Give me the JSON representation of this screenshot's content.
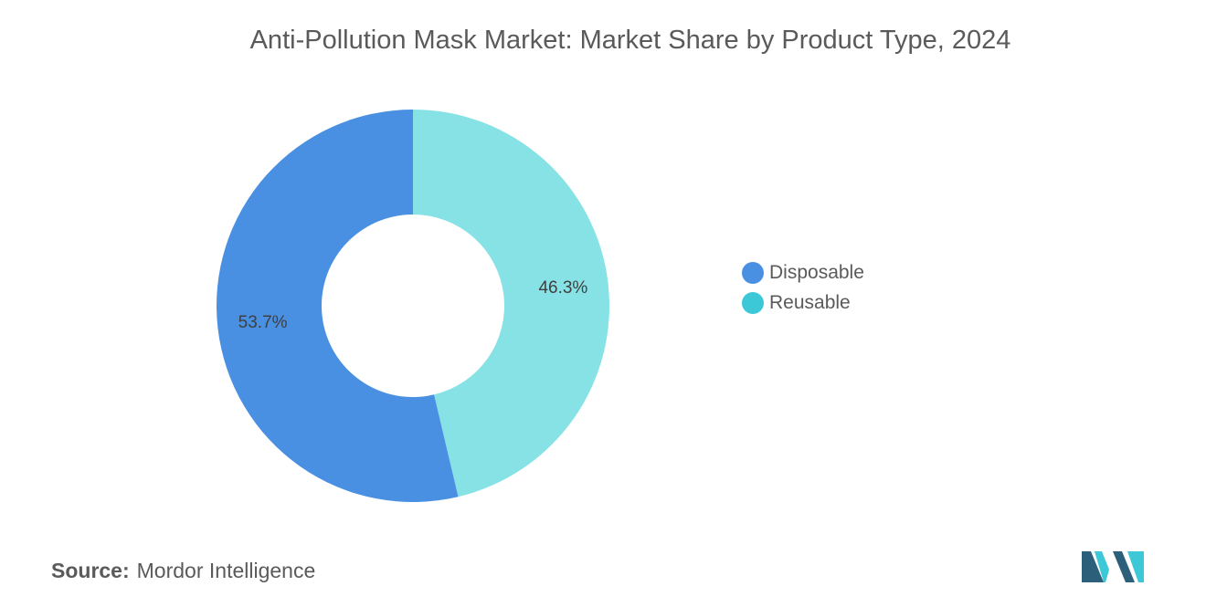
{
  "title": "Anti-Pollution Mask Market: Market Share by Product Type, 2024",
  "chart_data": {
    "type": "pie",
    "variant": "donut",
    "title": "Anti-Pollution Mask Market: Market Share by Product Type, 2024",
    "categories": [
      "Disposable",
      "Reusable"
    ],
    "values": [
      53.7,
      46.3
    ],
    "unit": "%",
    "data_labels": [
      "53.7%",
      "46.3%"
    ],
    "colors": [
      "#4a90e2",
      "#87e2e6"
    ],
    "legend_colors": [
      "#4a90e2",
      "#3cc8d6"
    ],
    "legend_position": "right"
  },
  "legend": {
    "items": [
      {
        "label": "Disposable",
        "color": "#4a90e2"
      },
      {
        "label": "Reusable",
        "color": "#3cc8d6"
      }
    ]
  },
  "source": {
    "prefix": "Source:",
    "text": "Mordor Intelligence"
  },
  "logo": {
    "icon": "mordor-intelligence-logo-icon",
    "colors": [
      "#2b5f7a",
      "#3cc8d6"
    ]
  }
}
